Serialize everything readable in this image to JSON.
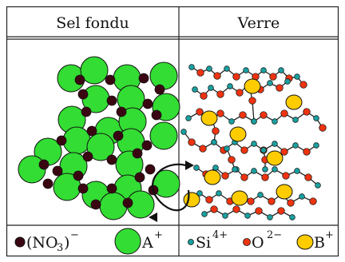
{
  "headers": {
    "left": "Sel fondu",
    "right": "Verre"
  },
  "legend": {
    "nitrate_open": "(NO",
    "nitrate_sub": "3",
    "nitrate_close": ")",
    "nitrate_charge": "−",
    "alkali": "A",
    "alkali_charge": "+",
    "silicon": "Si",
    "silicon_charge": "4+",
    "oxygen": "O",
    "oxygen_charge": "2−",
    "boron": "B",
    "boron_charge": "+"
  },
  "colors": {
    "alkali_fill": "#33dd33",
    "nitrate_fill": "#3a0612",
    "silicon_fill": "#1aa0a0",
    "oxygen_fill": "#ee3311",
    "boron_fill": "#ffcc00",
    "bond": "#222222",
    "frame": "#222222"
  },
  "icons": {
    "nitrate": "dark-dot-icon",
    "alkali": "green-circle-icon",
    "silicon": "teal-dot-icon",
    "oxygen": "red-dot-icon",
    "boron": "yellow-ellipse-icon",
    "exchange": "double-arrow-icon"
  }
}
